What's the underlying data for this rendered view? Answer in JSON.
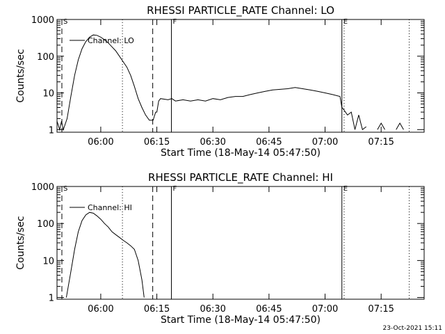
{
  "chart_data": [
    {
      "type": "line",
      "title": "RHESSI PARTICLE_RATE Channel: LO",
      "xlabel": "Start Time (18-May-14 05:47:50)",
      "ylabel": "Counts/sec",
      "x": [
        348.3,
        349,
        349.5,
        350,
        351,
        352,
        353,
        354,
        355,
        356,
        357,
        358,
        359,
        360,
        361,
        362,
        363,
        364,
        365,
        366,
        367,
        368,
        369,
        370,
        371,
        372,
        373,
        374,
        374.7,
        375,
        375.5,
        376,
        378,
        379,
        380,
        382,
        384,
        386,
        388,
        390,
        392,
        394,
        396,
        398,
        400,
        402,
        404,
        406,
        408,
        410,
        412,
        414,
        416,
        418,
        420,
        422,
        424,
        424.5,
        425,
        426,
        427,
        428,
        429,
        430,
        431,
        432,
        434,
        435,
        436,
        438,
        439,
        440,
        441,
        442
      ],
      "series": [
        {
          "name": "Channel: LO",
          "color": "#000000",
          "values": [
            1.7,
            1,
            1.7,
            1,
            2,
            8,
            30,
            80,
            160,
            250,
            330,
            380,
            370,
            330,
            280,
            230,
            180,
            140,
            100,
            70,
            50,
            30,
            15,
            7,
            4,
            2.5,
            1.8,
            1.8,
            3,
            3,
            6,
            7,
            6.5,
            7,
            6,
            6.5,
            6,
            6.5,
            6,
            7,
            6.5,
            7.5,
            8,
            8,
            9,
            10,
            11,
            12,
            12.5,
            13,
            14,
            13,
            12,
            11,
            10,
            9,
            8,
            4,
            3.5,
            2.5,
            3,
            1,
            2.5,
            1,
            1.2,
            null,
            1,
            1.5,
            1,
            null,
            1,
            1.5,
            1,
            null
          ]
        }
      ],
      "xlim": [
        348.3,
        446.5
      ],
      "xticks": [
        {
          "value": 360,
          "label": "06:00"
        },
        {
          "value": 375,
          "label": "06:15"
        },
        {
          "value": 390,
          "label": "06:30"
        },
        {
          "value": 405,
          "label": "06:45"
        },
        {
          "value": 420,
          "label": "07:00"
        },
        {
          "value": 435,
          "label": "07:15"
        }
      ],
      "ylim": [
        0.85,
        1000
      ],
      "yticks": [
        1,
        10,
        100,
        1000
      ],
      "log_y": true,
      "markers": [
        {
          "x": 349.6,
          "style": "dashed",
          "label": "S"
        },
        {
          "x": 365.8,
          "style": "dotted"
        },
        {
          "x": 373.9,
          "style": "dashed"
        },
        {
          "x": 378.9,
          "style": "solid",
          "label": "F"
        },
        {
          "x": 424.5,
          "style": "solid",
          "label": "E"
        },
        {
          "x": 425.1,
          "style": "dotted"
        },
        {
          "x": 442.5,
          "style": "dotted"
        }
      ]
    },
    {
      "type": "line",
      "title": "RHESSI PARTICLE_RATE Channel: HI",
      "xlabel": "Start Time (18-May-14 05:47:50)",
      "ylabel": "Counts/sec",
      "x": [
        350.8,
        352,
        353,
        354,
        355,
        356,
        357,
        358,
        359,
        360,
        361,
        362,
        363,
        364,
        365,
        366,
        367,
        368,
        369,
        370,
        371,
        371.6
      ],
      "series": [
        {
          "name": "Channel: HI",
          "color": "#000000",
          "values": [
            1,
            5,
            20,
            60,
            120,
            170,
            200,
            190,
            160,
            130,
            100,
            80,
            60,
            50,
            42,
            35,
            30,
            25,
            20,
            10,
            3,
            1
          ]
        }
      ],
      "xlim": [
        348.3,
        446.5
      ],
      "xticks": [
        {
          "value": 360,
          "label": "06:00"
        },
        {
          "value": 375,
          "label": "06:15"
        },
        {
          "value": 390,
          "label": "06:30"
        },
        {
          "value": 405,
          "label": "06:45"
        },
        {
          "value": 420,
          "label": "07:00"
        },
        {
          "value": 435,
          "label": "07:15"
        }
      ],
      "ylim": [
        0.9,
        1000
      ],
      "yticks": [
        1,
        10,
        100,
        1000
      ],
      "log_y": true,
      "markers": [
        {
          "x": 349.6,
          "style": "dashed",
          "label": "S"
        },
        {
          "x": 365.8,
          "style": "dotted"
        },
        {
          "x": 373.9,
          "style": "dashed"
        },
        {
          "x": 378.9,
          "style": "solid",
          "label": "F"
        },
        {
          "x": 424.5,
          "style": "solid",
          "label": "E"
        },
        {
          "x": 425.1,
          "style": "dotted"
        },
        {
          "x": 442.5,
          "style": "dotted"
        }
      ]
    }
  ],
  "footer": "23-Oct-2021 15:11"
}
